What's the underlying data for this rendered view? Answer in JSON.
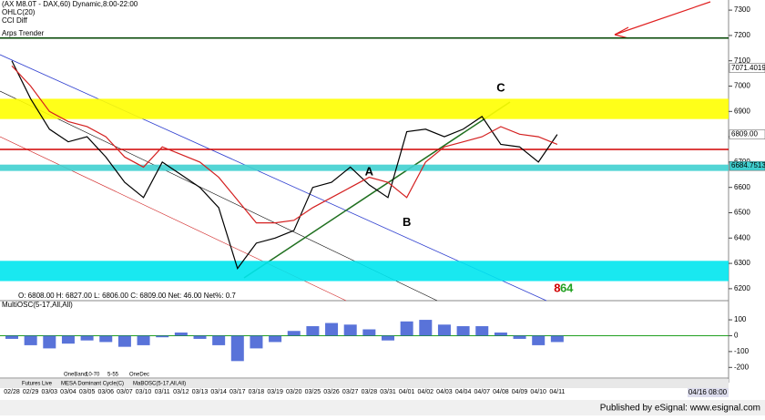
{
  "header": {
    "title": "(AX M8.0T - DAX,60) Dynamic,8:00-22:00",
    "study1": "OHLC(20)",
    "study2": "CCI Diff",
    "ohlc": "O: 6808.00  H: 6827.00  L: 6806.00  C: 6809.00  Net: 46.00  Net%: 0.7"
  },
  "chart_data": [
    {
      "type": "line",
      "categories": [
        "02/28",
        "02/29",
        "03/03",
        "03/04",
        "03/05",
        "03/06",
        "03/07",
        "03/10",
        "03/11",
        "03/12",
        "03/13",
        "03/14",
        "03/17",
        "03/18",
        "03/19",
        "03/20",
        "03/25",
        "03/26",
        "03/27",
        "03/28",
        "03/31",
        "04/01",
        "04/02",
        "04/03",
        "04/04",
        "04/07",
        "04/08",
        "04/09",
        "04/10",
        "04/11"
      ],
      "series": [
        {
          "color": "#000000",
          "values": [
            7100,
            6950,
            6830,
            6780,
            6800,
            6720,
            6620,
            6560,
            6700,
            6650,
            6600,
            6520,
            6280,
            6380,
            6400,
            6430,
            6600,
            6620,
            6680,
            6610,
            6560,
            6820,
            6830,
            6800,
            6830,
            6880,
            6770,
            6760,
            6700,
            6809
          ]
        },
        {
          "name": "Arps Trender",
          "color": "#d42020",
          "values": [
            7080,
            7000,
            6900,
            6860,
            6840,
            6800,
            6720,
            6680,
            6760,
            6730,
            6700,
            6640,
            6550,
            6460,
            6460,
            6470,
            6520,
            6560,
            6600,
            6640,
            6620,
            6560,
            6700,
            6760,
            6780,
            6800,
            6840,
            6810,
            6800,
            6770
          ]
        }
      ],
      "ylim": [
        6160,
        7340
      ],
      "yticks": [
        6200,
        6300,
        6400,
        6500,
        6600,
        6700,
        6800,
        6900,
        7000,
        7100,
        7200,
        7300
      ],
      "bands": [
        {
          "from": 6870,
          "to": 6950,
          "color": "#ffff00"
        },
        {
          "from": 6230,
          "to": 6310,
          "color": "#00e5ee"
        },
        {
          "from": 6665,
          "to": 6690,
          "color": "#40d0d0"
        }
      ],
      "levels": [
        {
          "value": 6750,
          "color": "#d00000"
        },
        {
          "value": 7190,
          "color": "#004400"
        }
      ],
      "price_labels": [
        {
          "value": 7071.4019,
          "label": "7071.4019",
          "color": "#ffffff"
        },
        {
          "value": 6809,
          "label": "6809.00",
          "color": "#ffffff"
        },
        {
          "value": 6684.7513,
          "label": "6684.7513",
          "color": "#40d0d0"
        }
      ],
      "annotations": [
        {
          "text": "A",
          "x": 19,
          "y": 6660,
          "color": "#000000"
        },
        {
          "text": "B",
          "x": 21,
          "y": 6460,
          "color": "#000000"
        },
        {
          "text": "C",
          "x": 26,
          "y": 6990,
          "color": "#000000"
        },
        {
          "text": "8",
          "x": 29,
          "y": 6200,
          "color": "#d00000"
        },
        {
          "text": "64",
          "x": 29.5,
          "y": 6200,
          "color": "#20a020"
        }
      ]
    },
    {
      "type": "bar",
      "title": "MultiOSC(5-17,All,All)",
      "color": "#3050d0",
      "values": [
        -20,
        -60,
        -80,
        -50,
        -30,
        -40,
        -70,
        -60,
        -10,
        20,
        -20,
        -60,
        -160,
        -80,
        -40,
        30,
        60,
        80,
        70,
        40,
        -30,
        90,
        100,
        70,
        60,
        60,
        20,
        -20,
        -60,
        -40
      ],
      "ylim": [
        -250,
        175
      ],
      "yticks": [
        100,
        0,
        -100,
        -200
      ]
    }
  ],
  "tabs": [
    "Futures Live",
    "MESA Dominant Cycle(C)",
    "MaBOSC(5-17,All,All)"
  ],
  "buttons": [
    "OneBand",
    "10-70",
    "5-55",
    "OneDec"
  ],
  "time_label": "04/16 08:00",
  "footer": "Published by eSignal: www.esignal.com"
}
